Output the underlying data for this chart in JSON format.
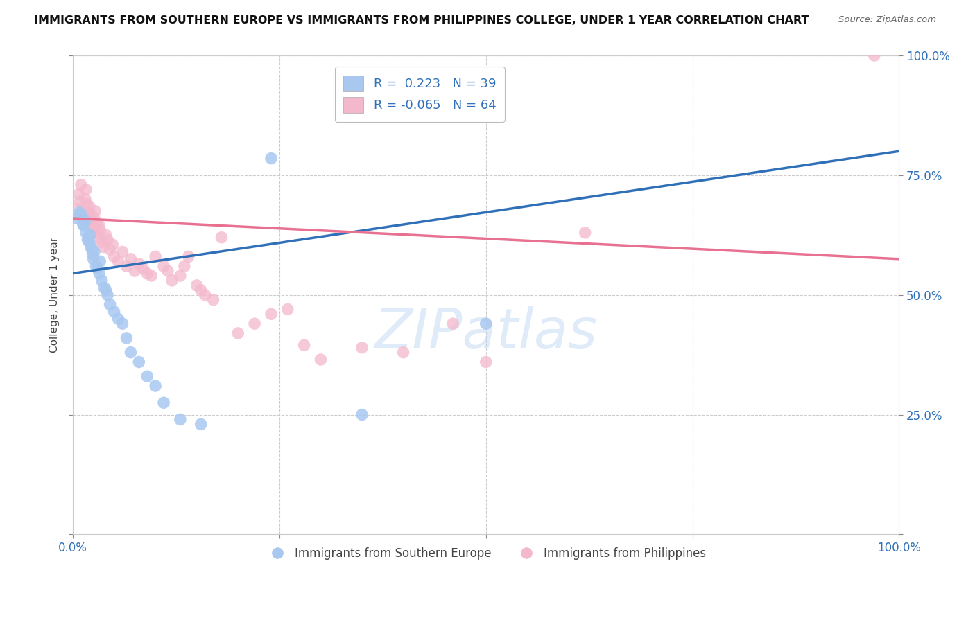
{
  "title": "IMMIGRANTS FROM SOUTHERN EUROPE VS IMMIGRANTS FROM PHILIPPINES COLLEGE, UNDER 1 YEAR CORRELATION CHART",
  "source": "Source: ZipAtlas.com",
  "ylabel": "College, Under 1 year",
  "xlabel_legend1": "Immigrants from Southern Europe",
  "xlabel_legend2": "Immigrants from Philippines",
  "ytick_values": [
    0,
    0.25,
    0.5,
    0.75,
    1.0
  ],
  "ytick_labels": [
    "",
    "25.0%",
    "50.0%",
    "75.0%",
    "100.0%"
  ],
  "xtick_values": [
    0,
    0.25,
    0.5,
    0.75,
    1.0
  ],
  "xtick_labels": [
    "0.0%",
    "",
    "",
    "",
    "100.0%"
  ],
  "r1": 0.223,
  "n1": 39,
  "r2": -0.065,
  "n2": 64,
  "color1": "#a8c8f0",
  "color2": "#f4b8cc",
  "line_color1": "#3070b8",
  "line_color2": "#e87090",
  "background_color": "#ffffff",
  "xlim": [
    0,
    1.0
  ],
  "ylim": [
    0,
    1.0
  ],
  "blue_line_x0": 0.0,
  "blue_line_y0": 0.545,
  "blue_line_x1": 1.0,
  "blue_line_y1": 0.8,
  "pink_line_x0": 0.0,
  "pink_line_y0": 0.66,
  "pink_line_x1": 1.0,
  "pink_line_y1": 0.575,
  "blue_scatter_x": [
    0.005,
    0.008,
    0.01,
    0.012,
    0.013,
    0.015,
    0.016,
    0.018,
    0.019,
    0.02,
    0.021,
    0.022,
    0.023,
    0.024,
    0.025,
    0.026,
    0.028,
    0.03,
    0.032,
    0.033,
    0.035,
    0.038,
    0.04,
    0.042,
    0.045,
    0.05,
    0.055,
    0.06,
    0.065,
    0.07,
    0.08,
    0.09,
    0.1,
    0.11,
    0.13,
    0.155,
    0.24,
    0.35,
    0.5
  ],
  "blue_scatter_y": [
    0.66,
    0.672,
    0.668,
    0.65,
    0.645,
    0.655,
    0.63,
    0.615,
    0.62,
    0.61,
    0.625,
    0.6,
    0.595,
    0.585,
    0.575,
    0.59,
    0.56,
    0.555,
    0.545,
    0.57,
    0.53,
    0.515,
    0.51,
    0.5,
    0.48,
    0.465,
    0.45,
    0.44,
    0.41,
    0.38,
    0.36,
    0.33,
    0.31,
    0.275,
    0.24,
    0.23,
    0.785,
    0.25,
    0.44
  ],
  "pink_scatter_x": [
    0.005,
    0.007,
    0.009,
    0.01,
    0.012,
    0.013,
    0.015,
    0.016,
    0.017,
    0.018,
    0.019,
    0.02,
    0.021,
    0.022,
    0.023,
    0.024,
    0.025,
    0.026,
    0.027,
    0.028,
    0.029,
    0.03,
    0.032,
    0.033,
    0.035,
    0.037,
    0.04,
    0.042,
    0.045,
    0.048,
    0.05,
    0.055,
    0.06,
    0.065,
    0.07,
    0.075,
    0.08,
    0.085,
    0.09,
    0.095,
    0.1,
    0.11,
    0.115,
    0.12,
    0.13,
    0.135,
    0.14,
    0.15,
    0.155,
    0.16,
    0.17,
    0.18,
    0.2,
    0.22,
    0.24,
    0.26,
    0.28,
    0.3,
    0.35,
    0.4,
    0.46,
    0.5,
    0.62,
    0.97
  ],
  "pink_scatter_y": [
    0.68,
    0.71,
    0.695,
    0.73,
    0.665,
    0.66,
    0.7,
    0.72,
    0.69,
    0.672,
    0.66,
    0.685,
    0.67,
    0.655,
    0.65,
    0.645,
    0.64,
    0.66,
    0.675,
    0.63,
    0.65,
    0.62,
    0.645,
    0.635,
    0.61,
    0.6,
    0.625,
    0.615,
    0.595,
    0.605,
    0.58,
    0.57,
    0.59,
    0.56,
    0.575,
    0.55,
    0.565,
    0.555,
    0.545,
    0.54,
    0.58,
    0.56,
    0.55,
    0.53,
    0.54,
    0.56,
    0.58,
    0.52,
    0.51,
    0.5,
    0.49,
    0.62,
    0.42,
    0.44,
    0.46,
    0.47,
    0.395,
    0.365,
    0.39,
    0.38,
    0.44,
    0.36,
    0.63,
    1.0
  ]
}
